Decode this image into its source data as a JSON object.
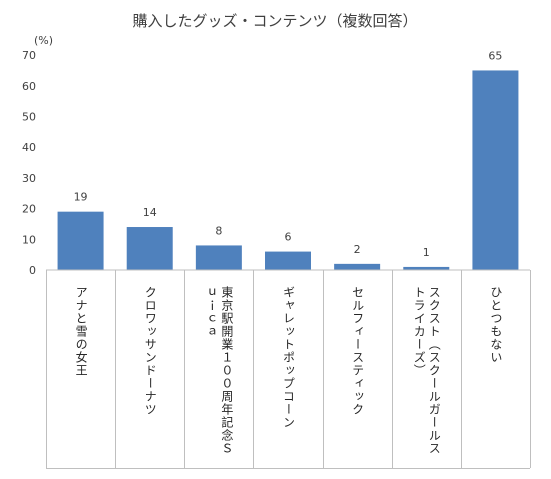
{
  "chart_data": {
    "type": "bar",
    "title": "購入したグッズ・コンテンツ（複数回答）",
    "unit_label": "(%)",
    "categories": [
      "アナと雪の女王",
      "クロワッサンドーナツ",
      "東京駅開業100周年記念Suica",
      "ギャレットポップコーン",
      "セルフィースティック",
      "スクスト（スクールガールストライカーズ）",
      "ひとつもない"
    ],
    "category_display": [
      "アナと雪の女王",
      "クロワッサンドーナツ",
      "東京駅開業１００周年記念Ｓｕｉｃａ",
      "ギャレットポップコーン",
      "セルフィースティック",
      "スクスト（スクールガールストライカーズ）",
      "ひとつもない"
    ],
    "values": [
      19,
      14,
      8,
      6,
      2,
      1,
      65
    ],
    "yticks": [
      "0",
      "10",
      "20",
      "30",
      "40",
      "50",
      "60",
      "70"
    ],
    "ylim": [
      0,
      70
    ],
    "grid": false,
    "bar_color": "#4f81bd",
    "axis_color": "#bfbfbf"
  }
}
